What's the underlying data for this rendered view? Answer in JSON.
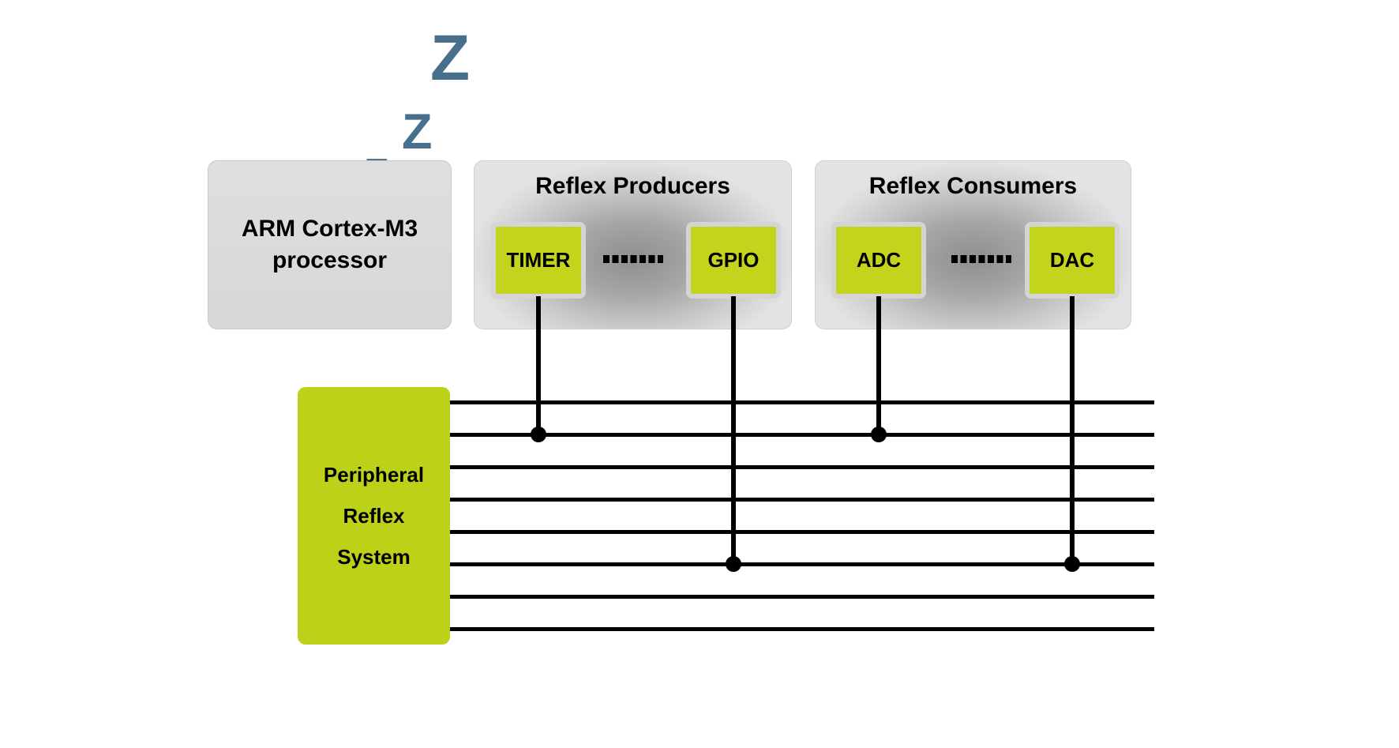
{
  "sleep": {
    "glyphs": [
      "Z",
      "Z",
      "Z"
    ],
    "color": "#46708c"
  },
  "processor": {
    "name": "ARM Cortex-M3",
    "subtitle": "processor"
  },
  "producers": {
    "title": "Reflex Producers",
    "peripherals": [
      {
        "label": "TIMER"
      },
      {
        "label": "GPIO"
      }
    ],
    "separator": "......"
  },
  "consumers": {
    "title": "Reflex Consumers",
    "peripherals": [
      {
        "label": "ADC"
      },
      {
        "label": "DAC"
      }
    ],
    "separator": "......"
  },
  "prs": {
    "label_lines": [
      "Peripheral",
      "Reflex",
      "System"
    ],
    "channel_count": 8
  },
  "connections": [
    {
      "peripheral": "TIMER",
      "channel": 2
    },
    {
      "peripheral": "GPIO",
      "channel": 6
    },
    {
      "peripheral": "ADC",
      "channel": 2
    },
    {
      "peripheral": "DAC",
      "channel": 6
    }
  ],
  "colors": {
    "peripheral_green": "#c4d41c",
    "prs_green": "#bdd118",
    "processor_gray": "#dcdcdc",
    "group_gradient_dark": "#8e8e8e",
    "group_gradient_light": "#e3e3e3",
    "wire_black": "#000000",
    "sleep_z_blue": "#46708c"
  }
}
